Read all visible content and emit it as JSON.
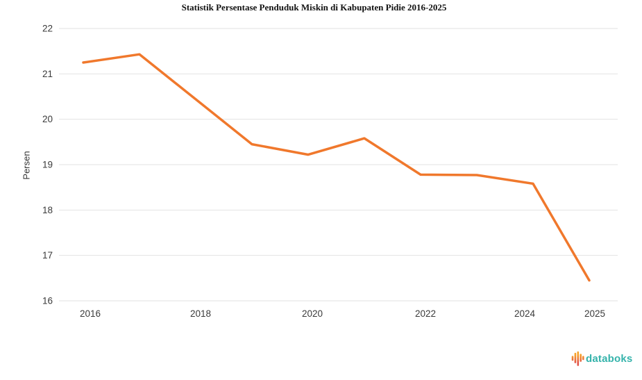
{
  "title": "Statistik Persentase Penduduk Miskin di Kabupaten Pidie 2016-2025",
  "chart_data": {
    "type": "line",
    "title": "Statistik Persentase Penduduk Miskin di Kabupaten Pidie 2016-2025",
    "x": [
      2016,
      2017,
      2018,
      2019,
      2020,
      2021,
      2022,
      2023,
      2024,
      2025
    ],
    "values": [
      21.25,
      21.43,
      20.44,
      19.45,
      19.22,
      19.58,
      18.78,
      18.77,
      18.58,
      16.45
    ],
    "xlabel": "",
    "ylabel": "Persen",
    "ylim": [
      16,
      22
    ],
    "y_ticks": [
      22,
      21,
      20,
      19,
      18,
      17,
      16
    ],
    "x_tick_labels": [
      "2016",
      "2018",
      "2020",
      "2022",
      "2024",
      "2025"
    ],
    "grid": "horizontal-only",
    "legend": "none",
    "line_color": "#F0782C"
  },
  "colors": {
    "line": "#F0782C",
    "grid": "#E2E2E2",
    "axis_text": "#3A3A3A",
    "title_text": "#111111",
    "logo_teal": "#35B3AB",
    "logo_orange": "#F6A229",
    "logo_red": "#E25449"
  },
  "branding": {
    "name": "databoks",
    "icon": "databoks-pulse-bars-icon"
  }
}
